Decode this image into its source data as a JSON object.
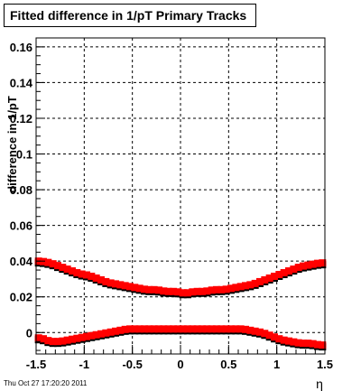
{
  "page": {
    "title": "Fitted difference in 1/pT  Primary Tracks",
    "footer": "Thu Oct 27 17:20:20 2011"
  },
  "chart_data": {
    "type": "scatter",
    "title": "Fitted difference in 1/pT  Primary Tracks",
    "xlabel": "η",
    "ylabel": "difference in 1/pT",
    "xlim": [
      -1.5,
      1.5
    ],
    "ylim": [
      -0.012,
      0.165
    ],
    "grid": true,
    "xticks": [
      -1.5,
      -1,
      -0.5,
      0,
      0.5,
      1,
      1.5
    ],
    "xtick_labels": [
      "-1.5",
      "-1",
      "-0.5",
      "0",
      "0.5",
      "1",
      "1.5"
    ],
    "yticks": [
      0,
      0.02,
      0.04,
      0.06,
      0.08,
      0.1,
      0.12,
      0.14,
      0.16
    ],
    "ytick_labels": [
      "0",
      "0.02",
      "0.04",
      "0.06",
      "0.08",
      "0.1",
      "0.12",
      "0.14",
      "0.16"
    ],
    "colors": {
      "upper": "#ff0000",
      "lower": "#ff0000",
      "underlay": "#000000"
    },
    "series": [
      {
        "x": [
          -1.45,
          -1.35,
          -1.25,
          -1.15,
          -1.05,
          -0.95,
          -0.85,
          -0.75,
          -0.65,
          -0.55,
          -0.45,
          -0.35,
          -0.25,
          -0.15,
          -0.05,
          0.05,
          0.15,
          0.25,
          0.35,
          0.45,
          0.55,
          0.65,
          0.75,
          0.85,
          0.95,
          1.05,
          1.15,
          1.25,
          1.35,
          1.45
        ],
        "values": [
          0.04,
          0.039,
          0.037,
          0.035,
          0.033,
          0.032,
          0.03,
          0.028,
          0.027,
          0.026,
          0.025,
          0.024,
          0.024,
          0.023,
          0.023,
          0.022,
          0.023,
          0.023,
          0.024,
          0.024,
          0.025,
          0.026,
          0.027,
          0.029,
          0.031,
          0.033,
          0.035,
          0.037,
          0.038,
          0.039
        ]
      },
      {
        "x": [
          -1.45,
          -1.35,
          -1.25,
          -1.15,
          -1.05,
          -0.95,
          -0.85,
          -0.75,
          -0.65,
          -0.55,
          -0.45,
          -0.35,
          -0.25,
          -0.15,
          -0.05,
          0.05,
          0.15,
          0.25,
          0.35,
          0.45,
          0.55,
          0.65,
          0.75,
          0.85,
          0.95,
          1.05,
          1.15,
          1.25,
          1.35,
          1.45
        ],
        "values": [
          -0.003,
          -0.005,
          -0.005,
          -0.004,
          -0.003,
          -0.002,
          -0.001,
          0.0,
          0.001,
          0.002,
          0.002,
          0.002,
          0.002,
          0.002,
          0.002,
          0.002,
          0.002,
          0.002,
          0.002,
          0.002,
          0.002,
          0.002,
          0.001,
          0.0,
          -0.002,
          -0.004,
          -0.005,
          -0.006,
          -0.006,
          -0.007
        ]
      }
    ]
  }
}
